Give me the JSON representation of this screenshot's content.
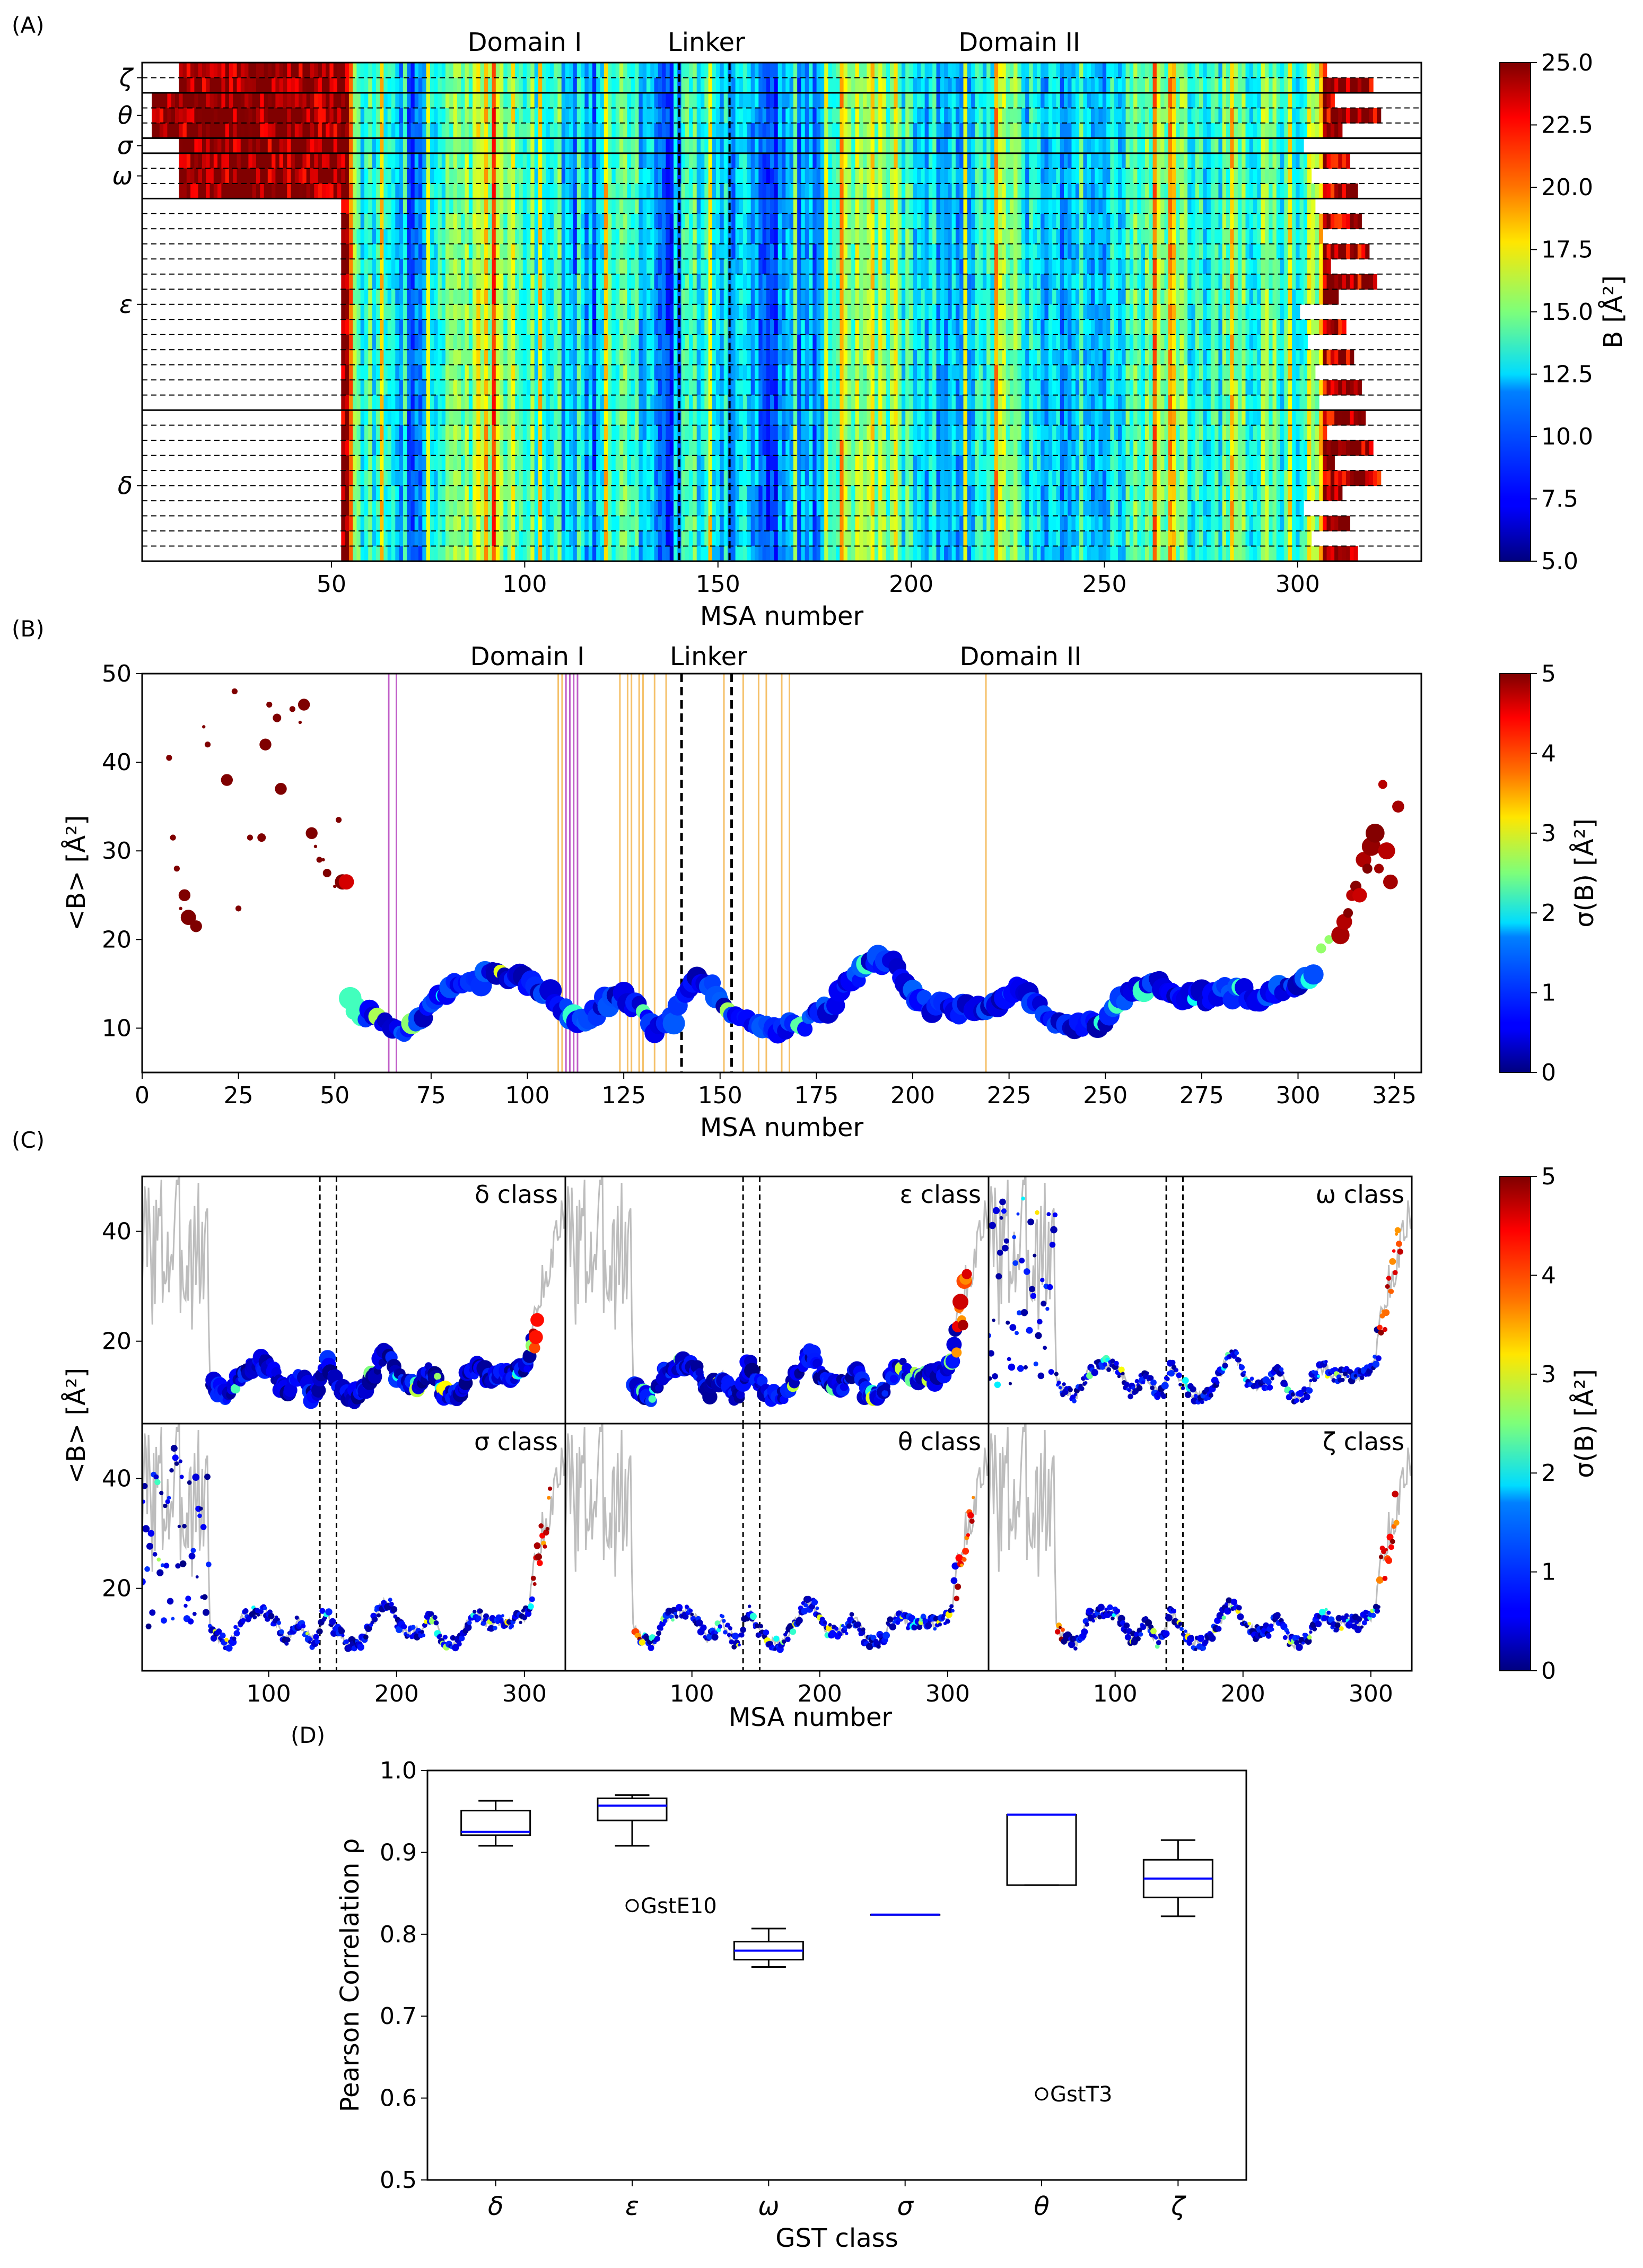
{
  "panels": {
    "A": "(A)",
    "B": "(B)",
    "C": "(C)",
    "D": "(D)"
  },
  "chart_data": [
    {
      "panel": "A",
      "type": "heatmap",
      "xlabel": "MSA number",
      "ylabel": "",
      "xlim": [
        1,
        332
      ],
      "xticks": [
        50,
        100,
        150,
        200,
        250,
        300
      ],
      "row_labels": [
        "ζ",
        "θ",
        "σ",
        "ω",
        "ε",
        "δ"
      ],
      "row_counts": [
        2,
        3,
        1,
        3,
        14,
        10
      ],
      "region_labels": [
        {
          "text": "Domain I",
          "x": 100
        },
        {
          "text": "Linker",
          "x": 147
        },
        {
          "text": "Domain II",
          "x": 228
        }
      ],
      "linker_lines": [
        140,
        153
      ],
      "colorbar": {
        "label": "B [Å²]",
        "min": 5.0,
        "max": 25.0,
        "ticks": [
          "5.0",
          "7.5",
          "10.0",
          "12.5",
          "15.0",
          "17.5",
          "20.0",
          "22.5",
          "25.0"
        ]
      },
      "profile_knots": {
        "x": [
          55,
          65,
          72,
          80,
          90,
          100,
          108,
          114,
          120,
          126,
          132,
          138,
          143,
          148,
          156,
          165,
          175,
          183,
          190,
          196,
          202,
          210,
          218,
          225,
          232,
          240,
          248,
          253,
          258,
          263,
          270,
          278,
          286,
          294,
          300,
          305,
          310,
          315
        ],
        "B": [
          15,
          11,
          10.5,
          13.5,
          17,
          15,
          12,
          10.5,
          11,
          15,
          11,
          9.5,
          14,
          12,
          11,
          10,
          11,
          15,
          16,
          14,
          12,
          11.5,
          13,
          15,
          11.5,
          10,
          11,
          13,
          14,
          15,
          14,
          13,
          14,
          14,
          13,
          17,
          22,
          25
        ]
      }
    },
    {
      "panel": "B",
      "type": "scatter",
      "xlabel": "MSA number",
      "ylabel": "<B> [Å²]",
      "xlim": [
        0,
        332
      ],
      "ylim": [
        5,
        50
      ],
      "xticks": [
        "0",
        "25",
        "50",
        "75",
        "100",
        "125",
        "150",
        "175",
        "200",
        "225",
        "250",
        "275",
        "300",
        "325"
      ],
      "yticks": [
        "10",
        "20",
        "30",
        "40",
        "50"
      ],
      "region_labels": [
        {
          "text": "Domain I",
          "x": 100
        },
        {
          "text": "Linker",
          "x": 147
        },
        {
          "text": "Domain II",
          "x": 228
        }
      ],
      "linker_lines": [
        140,
        153
      ],
      "magenta_lines": [
        64,
        66,
        110,
        111,
        112,
        113
      ],
      "orange_lines": [
        108,
        109,
        124,
        126,
        127,
        129,
        130,
        133,
        136,
        151,
        156,
        160,
        162,
        166,
        168,
        219
      ],
      "colorbar": {
        "label": "σ(B) [Å²]",
        "min": 0,
        "max": 5,
        "ticks": [
          "0",
          "1",
          "2",
          "3",
          "4",
          "5"
        ]
      },
      "points_head": {
        "x": [
          7,
          8,
          9,
          10,
          11,
          12,
          13,
          14,
          16,
          17,
          22,
          24,
          25,
          28,
          31,
          32,
          33,
          35,
          36,
          39,
          41,
          42,
          44,
          45,
          46,
          47,
          48,
          50,
          51,
          52,
          53
        ],
        "y": [
          40.5,
          31.5,
          28,
          23.5,
          25,
          22.5,
          21.5,
          21.5,
          44,
          42,
          38,
          48,
          23.5,
          31.5,
          31.5,
          42,
          46.5,
          45,
          37,
          46,
          44.5,
          46.5,
          32,
          30.5,
          29,
          29,
          27.5,
          26,
          33.5,
          26.5,
          26.5
        ]
      },
      "points_tail": {
        "x": [
          306,
          308,
          310,
          311,
          312,
          313,
          314,
          315,
          316,
          317,
          318,
          319,
          320,
          321,
          322,
          323,
          324,
          326
        ],
        "y": [
          19,
          20,
          20.5,
          20.5,
          22,
          23,
          25,
          26,
          25,
          29,
          28,
          30.5,
          32,
          28,
          37.5,
          30,
          26.5,
          35
        ]
      },
      "profile_knots": {
        "x": [
          54,
          58,
          62,
          66,
          70,
          75,
          80,
          85,
          90,
          95,
          100,
          105,
          110,
          113,
          118,
          123,
          128,
          133,
          138,
          142,
          146,
          150,
          154,
          158,
          163,
          168,
          172,
          177,
          182,
          187,
          191,
          195,
          200,
          205,
          210,
          215,
          220,
          225,
          230,
          235,
          240,
          245,
          250,
          255,
          260,
          264,
          268,
          272,
          276,
          280,
          285,
          290,
          295,
          300,
          304
        ],
        "B": [
          13,
          11.5,
          11,
          10,
          10.2,
          12.5,
          14.8,
          15,
          15.8,
          16,
          15.5,
          14,
          11.8,
          10.8,
          12,
          14,
          12.5,
          10.2,
          11,
          14.8,
          15.8,
          13,
          12,
          11,
          10,
          10,
          10.2,
          12,
          14,
          16.5,
          17.5,
          17,
          14,
          12.5,
          12,
          12.2,
          12,
          14.5,
          14,
          11,
          10,
          10.2,
          11,
          13.5,
          14.5,
          15.5,
          14,
          13.5,
          13.5,
          14,
          14,
          13.5,
          14.5,
          15,
          16.5
        ]
      }
    },
    {
      "panel": "C",
      "type": "scatter",
      "xlabel": "MSA number",
      "ylabel": "<B> [Å²]",
      "xlim": [
        1,
        332
      ],
      "ylim": [
        5,
        50
      ],
      "xticks": [
        "100",
        "200",
        "300"
      ],
      "yticks": [
        "20",
        "40"
      ],
      "linker_lines": [
        140,
        153
      ],
      "colorbar": {
        "label": "σ(B) [Å²]",
        "min": 0,
        "max": 5,
        "ticks": [
          "0",
          "1",
          "2",
          "3",
          "4",
          "5"
        ]
      },
      "subplots": [
        {
          "name": "δ class",
          "start": 55,
          "end": 310
        },
        {
          "name": "ε class",
          "start": 55,
          "end": 315
        },
        {
          "name": "ω class",
          "start": 1,
          "end": 323
        },
        {
          "name": "σ class",
          "start": 1,
          "end": 320
        },
        {
          "name": "θ class",
          "start": 55,
          "end": 320
        },
        {
          "name": "ζ class",
          "start": 55,
          "end": 320
        }
      ]
    },
    {
      "panel": "D",
      "type": "box",
      "xlabel": "GST class",
      "ylabel": "Pearson Correlation ρ",
      "ylim": [
        0.5,
        1.0
      ],
      "yticks": [
        "0.5",
        "0.6",
        "0.7",
        "0.8",
        "0.9",
        "1.0"
      ],
      "categories": [
        "δ",
        "ε",
        "ω",
        "σ",
        "θ",
        "ζ"
      ],
      "boxes": [
        {
          "min": 0.908,
          "q1": 0.921,
          "median": 0.925,
          "q3": 0.951,
          "max": 0.963
        },
        {
          "min": 0.908,
          "q1": 0.939,
          "median": 0.957,
          "q3": 0.966,
          "max": 0.97
        },
        {
          "min": 0.76,
          "q1": 0.769,
          "median": 0.78,
          "q3": 0.791,
          "max": 0.807
        },
        {
          "min": 0.824,
          "q1": 0.824,
          "median": 0.824,
          "q3": 0.824,
          "max": 0.824
        },
        {
          "min": 0.86,
          "q1": 0.86,
          "median": 0.946,
          "q3": 0.946,
          "max": 0.946
        },
        {
          "min": 0.822,
          "q1": 0.845,
          "median": 0.868,
          "q3": 0.891,
          "max": 0.915
        }
      ],
      "outliers": [
        {
          "category": "ε",
          "value": 0.835,
          "label": "GstE10"
        },
        {
          "category": "θ",
          "value": 0.605,
          "label": "GstT3"
        }
      ]
    }
  ]
}
